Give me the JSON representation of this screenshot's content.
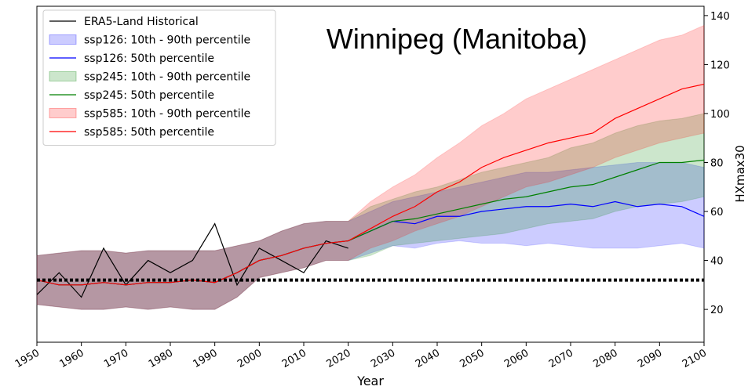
{
  "chart_data": {
    "type": "line",
    "title": "Winnipeg (Manitoba)",
    "x_label": "Year",
    "y_label": "HXmax30",
    "x": [
      1950,
      1955,
      1960,
      1965,
      1970,
      1975,
      1980,
      1985,
      1990,
      1995,
      2000,
      2005,
      2010,
      2015,
      2020,
      2025,
      2030,
      2035,
      2040,
      2045,
      2050,
      2055,
      2060,
      2065,
      2070,
      2075,
      2080,
      2085,
      2090,
      2095,
      2100
    ],
    "xlim": [
      1950,
      2100
    ],
    "xticks": [
      1950,
      1960,
      1970,
      1980,
      1990,
      2000,
      2010,
      2020,
      2030,
      2040,
      2050,
      2060,
      2070,
      2080,
      2090,
      2100
    ],
    "ylim": [
      6.6,
      143.8
    ],
    "yticks": [
      20,
      40,
      60,
      80,
      100,
      120,
      140
    ],
    "y_axis_side": "right",
    "legend": "upper left",
    "hline": 32,
    "series": [
      {
        "name": "ERA5-Land Historical",
        "color": "#000000",
        "values": [
          26,
          35,
          25,
          45,
          30,
          40,
          35,
          40,
          55,
          30,
          45,
          40,
          35,
          48,
          45,
          null,
          null,
          null,
          null,
          null,
          null,
          null,
          null,
          null,
          null,
          null,
          null,
          null,
          null,
          null,
          null
        ]
      },
      {
        "name": "ssp126: 10th - 90th percentile",
        "color": "#0000ff",
        "lower": [
          22,
          21,
          20,
          20,
          21,
          20,
          21,
          20,
          20,
          25,
          33,
          35,
          37,
          40,
          40,
          43,
          46,
          45,
          47,
          48,
          47,
          47,
          46,
          47,
          46,
          45,
          45,
          45,
          46,
          47,
          45
        ],
        "upper": [
          42,
          43,
          44,
          44,
          43,
          44,
          44,
          44,
          44,
          46,
          48,
          52,
          55,
          56,
          56,
          60,
          64,
          66,
          68,
          70,
          72,
          74,
          76,
          76,
          77,
          78,
          79,
          80,
          80,
          80,
          78
        ]
      },
      {
        "name": "ssp126: 50th percentile",
        "color": "#0000ff",
        "values": [
          32,
          30,
          30,
          31,
          30,
          31,
          31,
          32,
          31,
          35,
          40,
          42,
          45,
          47,
          48,
          52,
          56,
          55,
          58,
          58,
          60,
          61,
          62,
          62,
          63,
          62,
          64,
          62,
          63,
          62,
          58
        ]
      },
      {
        "name": "ssp245: 10th - 90th percentile",
        "color": "#008000",
        "lower": [
          22,
          21,
          20,
          20,
          21,
          20,
          21,
          20,
          20,
          25,
          33,
          35,
          37,
          40,
          40,
          42,
          46,
          47,
          48,
          49,
          50,
          51,
          53,
          55,
          56,
          57,
          60,
          62,
          63,
          64,
          66
        ],
        "upper": [
          42,
          43,
          44,
          44,
          43,
          44,
          44,
          44,
          44,
          46,
          48,
          52,
          55,
          56,
          56,
          62,
          65,
          68,
          70,
          73,
          76,
          78,
          80,
          82,
          86,
          88,
          92,
          95,
          97,
          98,
          100
        ]
      },
      {
        "name": "ssp245: 50th percentile",
        "color": "#008000",
        "values": [
          32,
          30,
          30,
          31,
          30,
          31,
          31,
          32,
          31,
          35,
          40,
          42,
          45,
          47,
          48,
          52,
          56,
          57,
          59,
          61,
          63,
          65,
          66,
          68,
          70,
          71,
          74,
          77,
          80,
          80,
          81
        ]
      },
      {
        "name": "ssp585: 10th - 90th percentile",
        "color": "#ff0000",
        "lower": [
          22,
          21,
          20,
          20,
          21,
          20,
          21,
          20,
          20,
          25,
          33,
          35,
          37,
          40,
          40,
          45,
          48,
          52,
          55,
          58,
          62,
          66,
          70,
          72,
          75,
          78,
          82,
          85,
          88,
          90,
          92
        ],
        "upper": [
          42,
          43,
          44,
          44,
          43,
          44,
          44,
          44,
          44,
          46,
          48,
          52,
          55,
          56,
          56,
          64,
          70,
          75,
          82,
          88,
          95,
          100,
          106,
          110,
          114,
          118,
          122,
          126,
          130,
          132,
          136
        ]
      },
      {
        "name": "ssp585: 50th percentile",
        "color": "#ff0000",
        "values": [
          32,
          30,
          30,
          31,
          30,
          31,
          31,
          32,
          31,
          35,
          40,
          42,
          45,
          47,
          48,
          53,
          58,
          62,
          68,
          72,
          78,
          82,
          85,
          88,
          90,
          92,
          98,
          102,
          106,
          110,
          112
        ]
      }
    ]
  }
}
